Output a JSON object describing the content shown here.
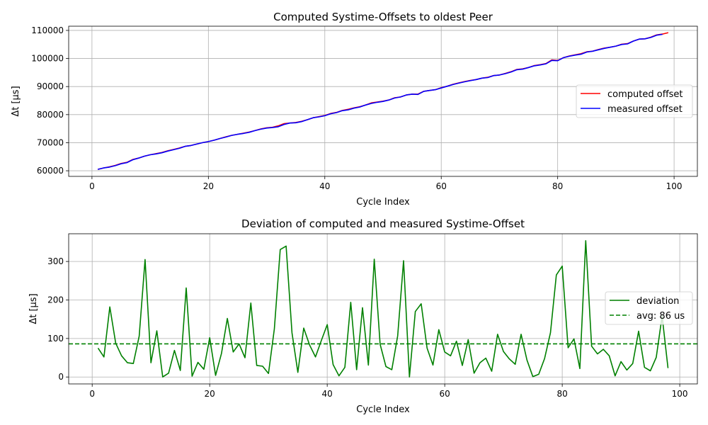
{
  "chart_data": [
    {
      "type": "line",
      "title": "Computed Systime-Offsets to oldest Peer",
      "xlabel": "Cycle Index",
      "ylabel": "Δt [µs]",
      "xlim": [
        -4,
        104
      ],
      "ylim": [
        58000,
        111500
      ],
      "xticks": [
        0,
        20,
        40,
        60,
        80,
        100
      ],
      "yticks": [
        60000,
        70000,
        80000,
        90000,
        100000,
        110000
      ],
      "grid": true,
      "legend_position": "center-right",
      "series": [
        {
          "name": "computed offset",
          "color": "#ff0000",
          "x": [
            1,
            2,
            3,
            4,
            5,
            6,
            7,
            8,
            9,
            10,
            11,
            12,
            13,
            14,
            15,
            16,
            17,
            18,
            19,
            20,
            21,
            22,
            23,
            24,
            25,
            26,
            27,
            28,
            29,
            30,
            31,
            32,
            33,
            34,
            35,
            36,
            37,
            38,
            39,
            40,
            41,
            42,
            43,
            44,
            45,
            46,
            47,
            48,
            49,
            50,
            51,
            52,
            53,
            54,
            55,
            56,
            57,
            58,
            59,
            60,
            61,
            62,
            63,
            64,
            65,
            66,
            67,
            68,
            69,
            70,
            71,
            72,
            73,
            74,
            75,
            76,
            77,
            78,
            79,
            80,
            81,
            82,
            83,
            84,
            85,
            86,
            87,
            88,
            89,
            90,
            91,
            92,
            93,
            94,
            95,
            96,
            97,
            98,
            99
          ],
          "y": [
            60500,
            61000,
            61400,
            61900,
            62600,
            63000,
            64000,
            64500,
            65200,
            65700,
            66100,
            66500,
            67100,
            67600,
            68100,
            68700,
            69000,
            69500,
            70000,
            70400,
            70900,
            71500,
            72100,
            72600,
            73000,
            73400,
            73800,
            74300,
            74900,
            75300,
            75500,
            76000,
            76800,
            77000,
            77200,
            77600,
            78200,
            78900,
            79300,
            79700,
            80400,
            80800,
            81500,
            81900,
            82400,
            82800,
            83400,
            84200,
            84500,
            84800,
            85200,
            86000,
            86300,
            87000,
            87300,
            87300,
            88300,
            88600,
            88900,
            89600,
            90100,
            90800,
            91300,
            91800,
            92200,
            92500,
            93000,
            93300,
            93900,
            94100,
            94700,
            95300,
            96100,
            96300,
            96800,
            97500,
            97800,
            98200,
            99500,
            99300,
            100300,
            100900,
            101300,
            101700,
            102400,
            102600,
            103200,
            103700,
            104000,
            104400,
            105100,
            105300,
            106200,
            106900,
            107000,
            107600,
            108400,
            108700,
            109200
          ]
        },
        {
          "name": "measured offset",
          "color": "#0000ff",
          "x": [
            1,
            2,
            3,
            4,
            5,
            6,
            7,
            8,
            9,
            10,
            11,
            12,
            13,
            14,
            15,
            16,
            17,
            18,
            19,
            20,
            21,
            22,
            23,
            24,
            25,
            26,
            27,
            28,
            29,
            30,
            31,
            32,
            33,
            34,
            35,
            36,
            37,
            38,
            39,
            40,
            41,
            42,
            43,
            44,
            45,
            46,
            47,
            48,
            49,
            50,
            51,
            52,
            53,
            54,
            55,
            56,
            57,
            58,
            59,
            60,
            61,
            62,
            63,
            64,
            65,
            66,
            67,
            68,
            69,
            70,
            71,
            72,
            73,
            74,
            75,
            76,
            77,
            78,
            79,
            80,
            81,
            82,
            83,
            84,
            85,
            86,
            87,
            88,
            89,
            90,
            91,
            92,
            93,
            94,
            95,
            96,
            97,
            98
          ],
          "y": [
            60500,
            61000,
            61300,
            61800,
            62500,
            62900,
            63900,
            64500,
            65200,
            65700,
            66000,
            66400,
            67000,
            67500,
            68000,
            68700,
            69000,
            69500,
            70000,
            70400,
            70900,
            71500,
            72000,
            72600,
            73000,
            73300,
            73700,
            74300,
            74800,
            75200,
            75400,
            75700,
            76500,
            77000,
            77100,
            77500,
            78200,
            78900,
            79200,
            79600,
            80300,
            80700,
            81400,
            81700,
            82300,
            82700,
            83400,
            84000,
            84400,
            84700,
            85200,
            85900,
            86300,
            87000,
            87300,
            87200,
            88300,
            88600,
            88900,
            89500,
            90100,
            90700,
            91200,
            91700,
            92100,
            92500,
            93000,
            93200,
            93900,
            94100,
            94600,
            95200,
            96000,
            96200,
            96800,
            97400,
            97700,
            98100,
            99300,
            99200,
            100300,
            100800,
            101200,
            101500,
            102300,
            102600,
            103100,
            103600,
            104000,
            104400,
            105000,
            105200,
            106200,
            106900,
            107000,
            107500,
            108300,
            108600
          ]
        }
      ]
    },
    {
      "type": "line",
      "title": "Deviation of computed and measured Systime-Offset",
      "xlabel": "Cycle Index",
      "ylabel": "Δt [µs]",
      "xlim": [
        -4,
        103
      ],
      "ylim": [
        -18,
        372
      ],
      "xticks": [
        0,
        20,
        40,
        60,
        80,
        100
      ],
      "yticks": [
        0,
        100,
        200,
        300
      ],
      "grid": true,
      "legend_position": "center-right",
      "series": [
        {
          "name": "deviation",
          "color": "#008000",
          "style": "solid",
          "x": [
            1,
            2,
            3,
            4,
            5,
            6,
            7,
            8,
            9,
            10,
            11,
            12,
            13,
            14,
            15,
            16,
            17,
            18,
            19,
            20,
            21,
            22,
            23,
            24,
            25,
            26,
            27,
            28,
            29,
            30,
            31,
            32,
            33,
            34,
            35,
            36,
            37,
            38,
            39,
            40,
            41,
            42,
            43,
            44,
            45,
            46,
            47,
            48,
            49,
            50,
            51,
            52,
            53,
            54,
            55,
            56,
            57,
            58,
            59,
            60,
            61,
            62,
            63,
            64,
            65,
            66,
            67,
            68,
            69,
            70,
            71,
            72,
            73,
            74,
            75,
            76,
            77,
            78,
            79,
            80,
            81,
            82,
            83,
            84,
            85,
            86,
            87,
            88,
            89,
            90,
            91,
            92,
            93,
            94,
            95,
            96,
            97,
            98
          ],
          "y": [
            75,
            52,
            182,
            88,
            55,
            37,
            35,
            106,
            305,
            37,
            120,
            0,
            10,
            69,
            17,
            231,
            2,
            38,
            20,
            102,
            4,
            61,
            152,
            65,
            86,
            50,
            192,
            30,
            28,
            9,
            125,
            331,
            340,
            115,
            12,
            127,
            83,
            52,
            95,
            136,
            32,
            3,
            25,
            194,
            19,
            180,
            31,
            306,
            85,
            27,
            19,
            107,
            302,
            0,
            170,
            190,
            75,
            31,
            123,
            65,
            55,
            93,
            30,
            97,
            10,
            37,
            49,
            15,
            111,
            66,
            47,
            33,
            111,
            44,
            1,
            7,
            48,
            115,
            265,
            288,
            76,
            99,
            22,
            354,
            80,
            60,
            72,
            55,
            3,
            40,
            18,
            35,
            119,
            25,
            16,
            51,
            158,
            23
          ]
        },
        {
          "name": "avg: 86 us",
          "color": "#008000",
          "style": "dashed",
          "constant": 86
        }
      ]
    }
  ]
}
